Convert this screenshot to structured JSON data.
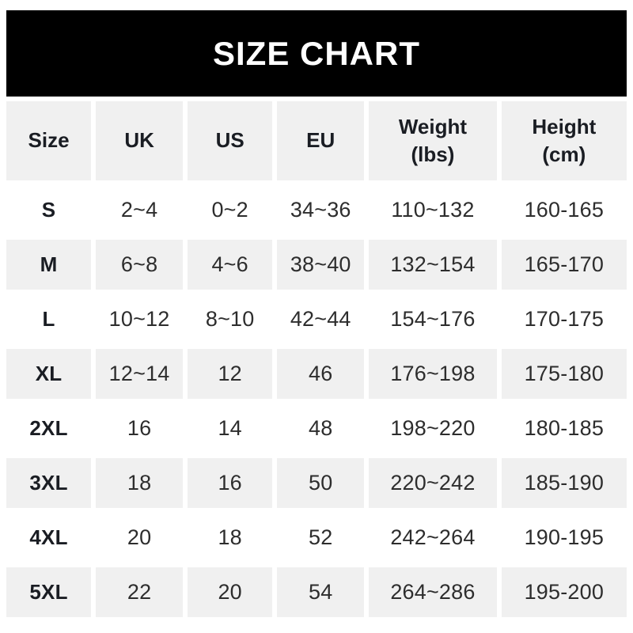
{
  "chart_data": {
    "type": "table",
    "title": "SIZE CHART",
    "columns": [
      {
        "key": "size",
        "lines": [
          "Size"
        ]
      },
      {
        "key": "uk",
        "lines": [
          "UK"
        ]
      },
      {
        "key": "us",
        "lines": [
          "US"
        ]
      },
      {
        "key": "eu",
        "lines": [
          "EU"
        ]
      },
      {
        "key": "weight",
        "lines": [
          "Weight",
          "(lbs)"
        ]
      },
      {
        "key": "height",
        "lines": [
          "Height",
          "(cm)"
        ]
      }
    ],
    "rows": [
      [
        "S",
        "2~4",
        "0~2",
        "34~36",
        "110~132",
        "160-165"
      ],
      [
        "M",
        "6~8",
        "4~6",
        "38~40",
        "132~154",
        "165-170"
      ],
      [
        "L",
        "10~12",
        "8~10",
        "42~44",
        "154~176",
        "170-175"
      ],
      [
        "XL",
        "12~14",
        "12",
        "46",
        "176~198",
        "175-180"
      ],
      [
        "2XL",
        "16",
        "14",
        "48",
        "198~220",
        "180-185"
      ],
      [
        "3XL",
        "18",
        "16",
        "50",
        "220~242",
        "185-190"
      ],
      [
        "4XL",
        "20",
        "18",
        "52",
        "242~264",
        "190-195"
      ],
      [
        "5XL",
        "22",
        "20",
        "54",
        "264~286",
        "195-200"
      ]
    ]
  },
  "colors": {
    "banner_background": "#000000",
    "banner_text": "#ffffff",
    "row_stripe": "#f0f0f0",
    "header_text": "#1a1d23",
    "data_text": "#2d2d2d",
    "page_background": "#ffffff"
  }
}
